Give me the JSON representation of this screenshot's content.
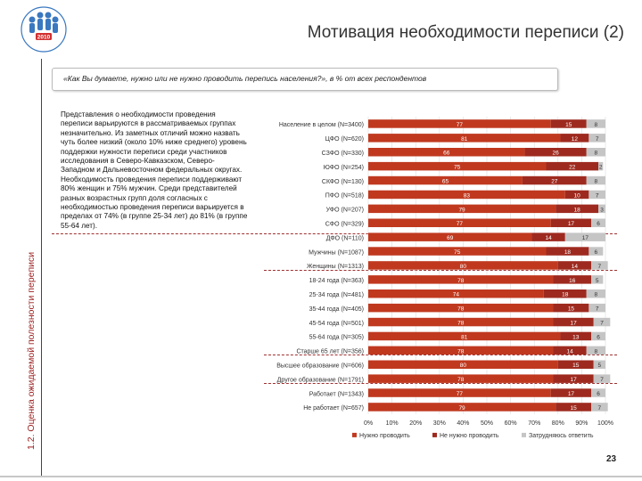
{
  "header": {
    "title": "Мотивация необходимости переписи (2)",
    "section_label": "1.2. Оценка ожидаемой полезности переписи",
    "question": "«Как Вы думаете, нужно или не нужно проводить перепись населения?», в % от всех респондентов",
    "page_number": "23"
  },
  "description": "Представления о необходимости проведения переписи варьируются в рассматриваемых группах незначительно. Из заметных отличий можно назвать чуть более низкий (около 10% ниже среднего) уровень поддержки нужности переписи среди участников исследования в Северо-Кавказском, Северо-Западном и Дальневосточном федеральных округах. Необходимость проведения переписи поддерживают 80% женщин и 75% мужчин. Среди представителей разных возрастных групп доля согласных с необходимостью проведения переписи варьируется в пределах от 74% (в группе 25-34 лет) до 81% (в группе 55-64 лет).",
  "colors": {
    "need": "#c0391f",
    "no_need": "#9e2a1f",
    "hard": "#c5c5c5",
    "accent": "#9a1f1f"
  },
  "chart_data": {
    "type": "bar",
    "stacked": true,
    "orientation": "horizontal",
    "categories": [
      "Население в целом (N=3400)",
      "ЦФО (N=620)",
      "СЗФО (N=330)",
      "ЮФО (N=254)",
      "СКФО (N=130)",
      "ПФО (N=518)",
      "УФО (N=207)",
      "СФО (N=329)",
      "ДФО (N=110)",
      "Мужчины (N=1087)",
      "Женщины (N=1313)",
      "18-24 года (N=363)",
      "25-34 года (N=481)",
      "35-44 года (N=405)",
      "45-54 года (N=501)",
      "55-64 года (N=305)",
      "Старше 65 лет (N=356)",
      "Высшее образование (N=606)",
      "Другое образование (N=1791)",
      "Работает (N=1343)",
      "Не работает (N=657)"
    ],
    "series": [
      {
        "name": "Нужно проводить",
        "values": [
          77,
          81,
          66,
          75,
          65,
          83,
          79,
          77,
          69,
          75,
          80,
          78,
          74,
          78,
          78,
          81,
          78,
          80,
          78,
          77,
          79
        ]
      },
      {
        "name": "Не нужно проводить",
        "values": [
          15,
          12,
          26,
          22,
          27,
          10,
          18,
          17,
          14,
          18,
          14,
          16,
          18,
          15,
          17,
          13,
          14,
          15,
          17,
          17,
          15
        ]
      },
      {
        "name": "Затрудняюсь ответить",
        "values": [
          8,
          7,
          8,
          2,
          8,
          7,
          3,
          6,
          17,
          6,
          7,
          5,
          8,
          7,
          7,
          6,
          8,
          5,
          7,
          6,
          7
        ]
      }
    ],
    "xlim": [
      0,
      100
    ],
    "xticks": [
      "0%",
      "10%",
      "20%",
      "30%",
      "40%",
      "50%",
      "60%",
      "70%",
      "80%",
      "90%",
      "100%"
    ],
    "legend_position": "bottom"
  }
}
